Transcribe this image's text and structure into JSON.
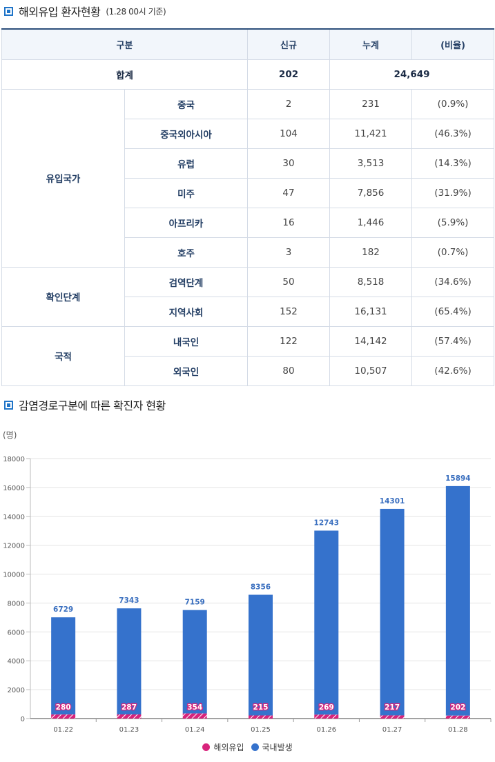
{
  "section1": {
    "title": "해외유입 환자현황",
    "subtitle": "(1.28 00시 기준)"
  },
  "table": {
    "headers": [
      "구분",
      "신규",
      "누계",
      "(비율)"
    ],
    "total": {
      "label": "합계",
      "new": "202",
      "cumulative": "24,649"
    },
    "groups": [
      {
        "name": "유입국가",
        "rows": [
          {
            "cat": "중국",
            "new": "2",
            "cum": "231",
            "ratio": "(0.9%)"
          },
          {
            "cat": "중국외아시아",
            "new": "104",
            "cum": "11,421",
            "ratio": "(46.3%)"
          },
          {
            "cat": "유럽",
            "new": "30",
            "cum": "3,513",
            "ratio": "(14.3%)"
          },
          {
            "cat": "미주",
            "new": "47",
            "cum": "7,856",
            "ratio": "(31.9%)"
          },
          {
            "cat": "아프리카",
            "new": "16",
            "cum": "1,446",
            "ratio": "(5.9%)"
          },
          {
            "cat": "호주",
            "new": "3",
            "cum": "182",
            "ratio": "(0.7%)"
          }
        ]
      },
      {
        "name": "확인단계",
        "rows": [
          {
            "cat": "검역단계",
            "new": "50",
            "cum": "8,518",
            "ratio": "(34.6%)"
          },
          {
            "cat": "지역사회",
            "new": "152",
            "cum": "16,131",
            "ratio": "(65.4%)"
          }
        ]
      },
      {
        "name": "국적",
        "rows": [
          {
            "cat": "내국인",
            "new": "122",
            "cum": "14,142",
            "ratio": "(57.4%)"
          },
          {
            "cat": "외국인",
            "new": "80",
            "cum": "10,507",
            "ratio": "(42.6%)"
          }
        ]
      }
    ]
  },
  "section2": {
    "title": "감염경로구분에 따른 확진자 현황"
  },
  "chart_data": {
    "type": "bar",
    "stacked": true,
    "ylabel": "(명)",
    "ylim": [
      0,
      18000
    ],
    "yticks": [
      0,
      2000,
      4000,
      6000,
      8000,
      10000,
      12000,
      14000,
      16000,
      18000
    ],
    "grid": true,
    "legend_position": "bottom",
    "categories": [
      "01.22",
      "01.23",
      "01.24",
      "01.25",
      "01.26",
      "01.27",
      "01.28"
    ],
    "series": [
      {
        "name": "해외유입",
        "color": "#d8247c",
        "values": [
          280,
          287,
          354,
          215,
          269,
          217,
          202
        ]
      },
      {
        "name": "국내발생",
        "color": "#3572cc",
        "values": [
          6729,
          7343,
          7159,
          8356,
          12743,
          14301,
          15894
        ]
      }
    ]
  }
}
